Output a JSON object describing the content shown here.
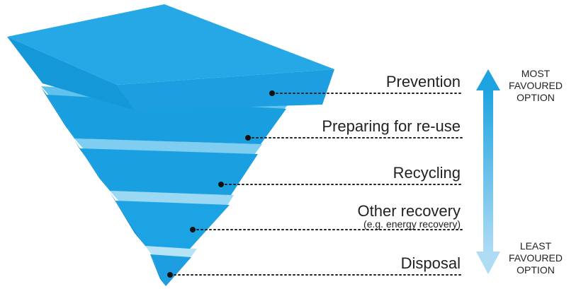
{
  "levels": [
    {
      "label": "Prevention",
      "sublabel": ""
    },
    {
      "label": "Preparing for re-use",
      "sublabel": ""
    },
    {
      "label": "Recycling",
      "sublabel": ""
    },
    {
      "label": "Other recovery",
      "sublabel": "(e.g. energy recovery)"
    },
    {
      "label": "Disposal",
      "sublabel": ""
    }
  ],
  "arrow": {
    "top_lines": [
      "MOST",
      "FAVOURED",
      "OPTION"
    ],
    "bottom_lines": [
      "LEAST",
      "FAVOURED",
      "OPTION"
    ],
    "color_top": "#1fa3e0",
    "color_bottom": "#9fd5f2"
  },
  "colors": {
    "top_face": "#27a8e6",
    "front_face": "#1d9ee0",
    "side_face": "#1598d8",
    "band": "#7fcdf0",
    "band_light": "#b7e3f7"
  }
}
